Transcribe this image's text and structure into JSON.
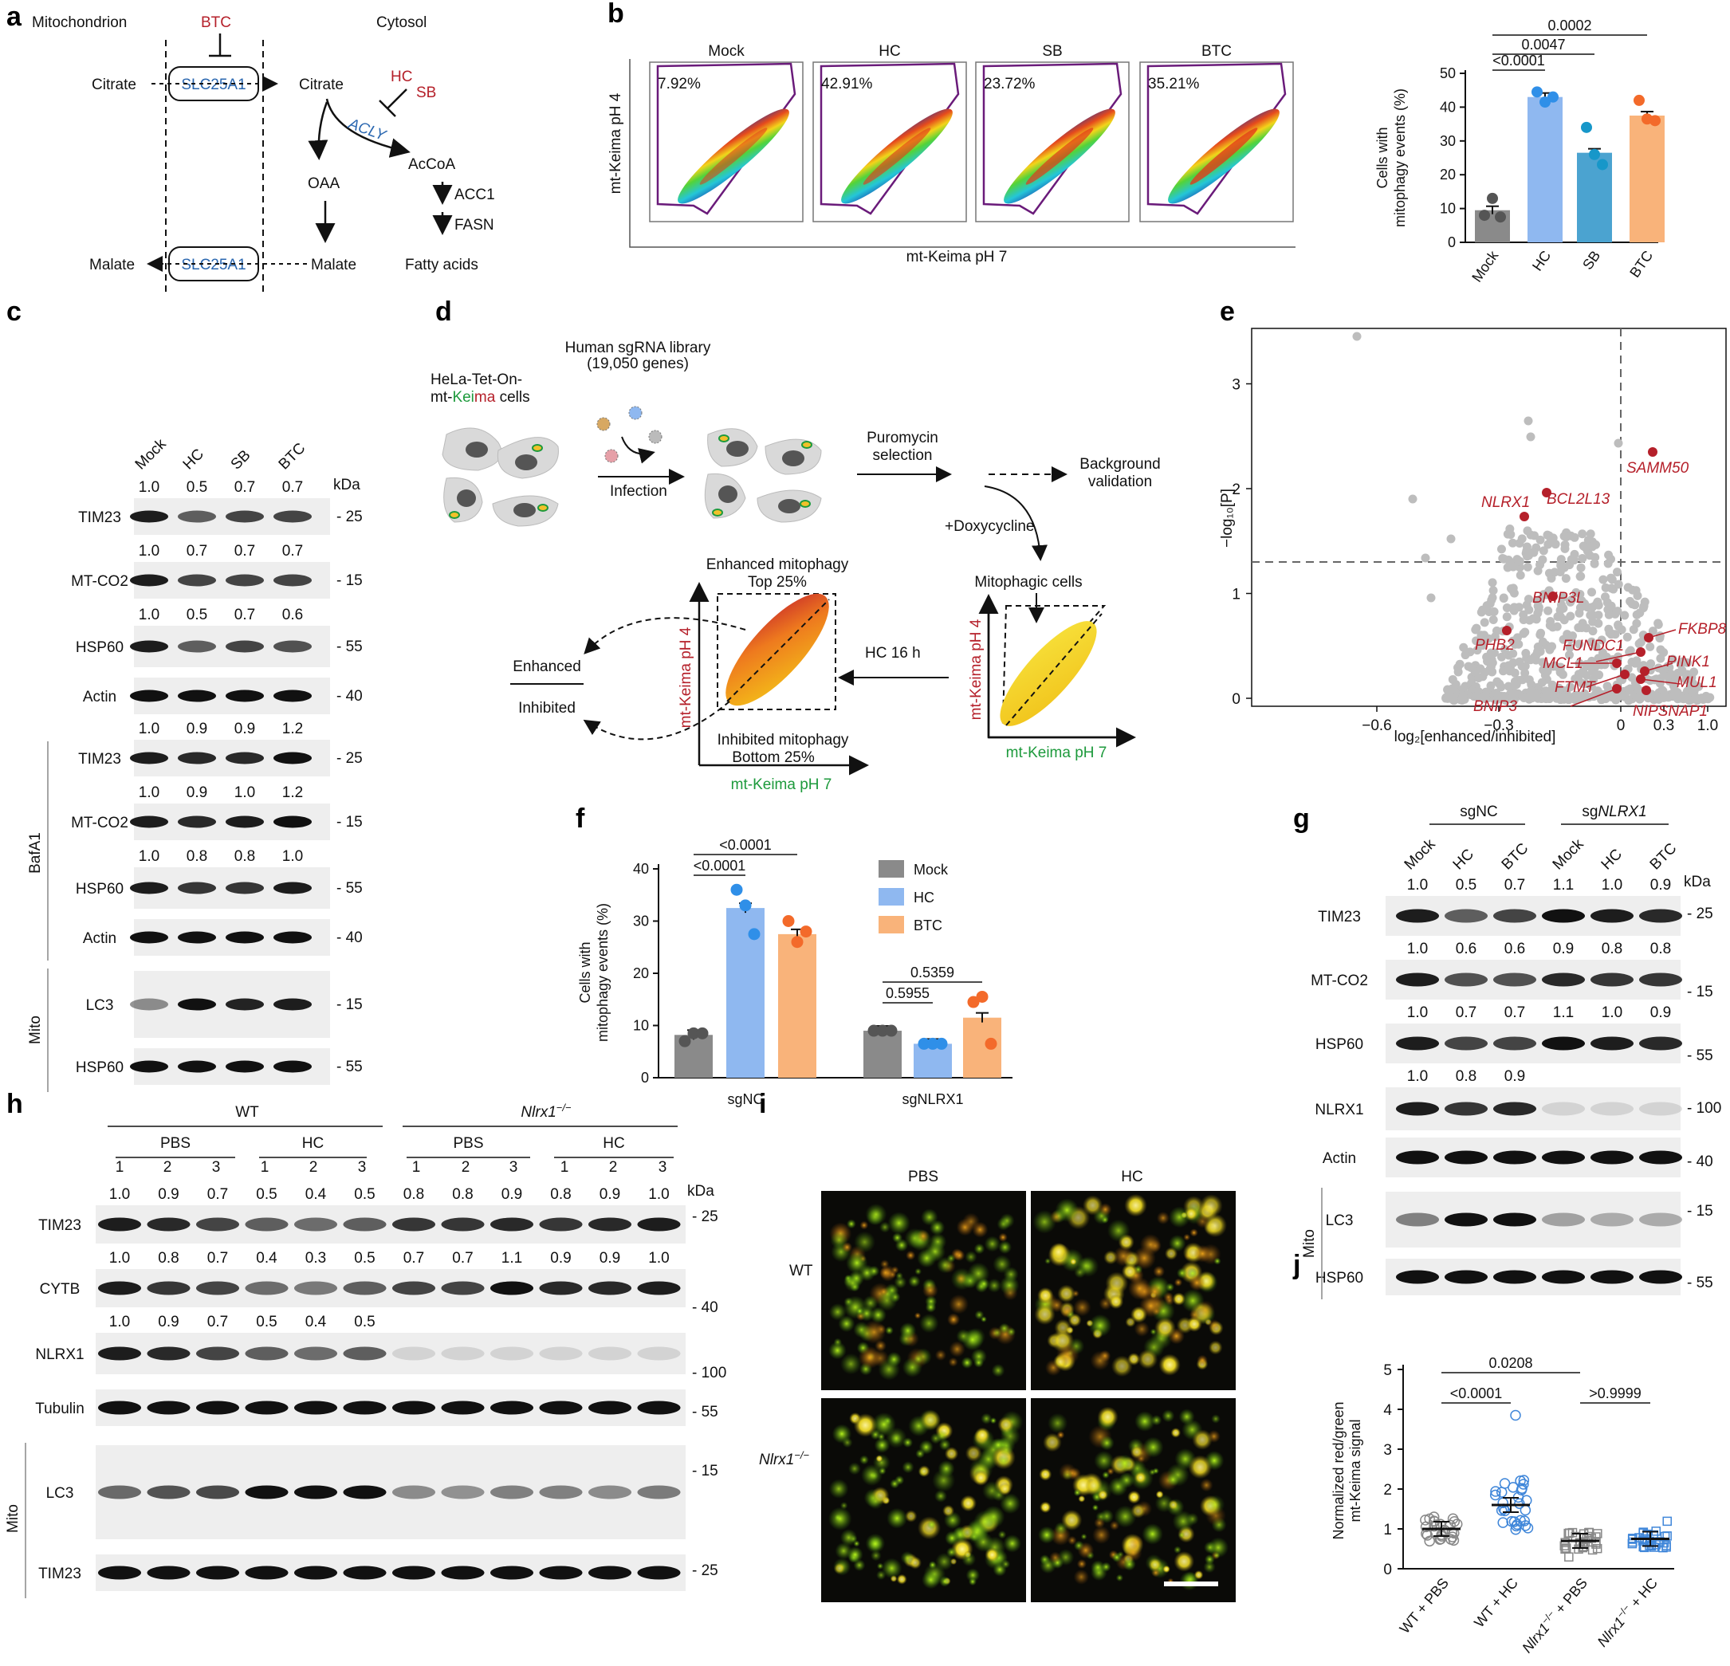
{
  "panel_letters": [
    "a",
    "b",
    "c",
    "d",
    "e",
    "f",
    "g",
    "h",
    "i",
    "j"
  ],
  "panel_a": {
    "mitochondrion": "Mitochondrion",
    "cytosol": "Cytosol",
    "btc": "BTC",
    "citrate_left": "Citrate",
    "citrate_right": "Citrate",
    "transporter_top": "SLC25A1",
    "transporter_bottom": "SLC25A1",
    "hc": "HC",
    "sb": "SB",
    "acly": "ACLY",
    "oaa": "OAA",
    "accoa": "AcCoA",
    "acc1": "ACC1",
    "fasn": "FASN",
    "malate_left": "Malate",
    "malate_right": "Malate",
    "fatty_acids": "Fatty acids"
  },
  "panel_b": {
    "flow_titles": [
      "Mock",
      "HC",
      "SB",
      "BTC"
    ],
    "flow_pcts": [
      "7.92%",
      "42.91%",
      "23.72%",
      "35.21%"
    ],
    "flow_ylabel": "mt-Keima pH 4",
    "flow_xlabel": "mt-Keima pH 7",
    "bar_ylabel_1": "Cells with",
    "bar_ylabel_2": "mitophagy events (%)",
    "bar_yticks": [
      "0",
      "10",
      "20",
      "30",
      "40",
      "50"
    ],
    "bar_cats": [
      "Mock",
      "HC",
      "SB",
      "BTC"
    ],
    "pvals": [
      "<0.0001",
      "0.0047",
      "0.0002"
    ]
  },
  "panel_c": {
    "lanes": [
      "Mock",
      "HC",
      "SB",
      "BTC"
    ],
    "kda": "kDa",
    "rows": [
      {
        "label": "TIM23",
        "ratios": [
          "1.0",
          "0.5",
          "0.7",
          "0.7"
        ],
        "marker": "25"
      },
      {
        "label": "MT-CO2",
        "ratios": [
          "1.0",
          "0.7",
          "0.7",
          "0.7"
        ],
        "marker": "15"
      },
      {
        "label": "HSP60",
        "ratios": [
          "1.0",
          "0.5",
          "0.7",
          "0.6"
        ],
        "marker": "55"
      },
      {
        "label": "Actin",
        "ratios": [],
        "marker": "40"
      },
      {
        "label": "TIM23",
        "ratios": [
          "1.0",
          "0.9",
          "0.9",
          "1.2"
        ],
        "marker": "25"
      },
      {
        "label": "MT-CO2",
        "ratios": [
          "1.0",
          "0.9",
          "1.0",
          "1.2"
        ],
        "marker": "15"
      },
      {
        "label": "HSP60",
        "ratios": [
          "1.0",
          "0.8",
          "0.8",
          "1.0"
        ],
        "marker": "55"
      },
      {
        "label": "Actin",
        "ratios": [],
        "marker": "40"
      },
      {
        "label": "LC3",
        "ratios": [],
        "marker": "15"
      },
      {
        "label": "HSP60",
        "ratios": [],
        "marker": "55"
      }
    ],
    "group_bafa1": "BafA1",
    "group_mito": "Mito"
  },
  "panel_d": {
    "library_1": "Human sgRNA library",
    "library_2": "(19,050 genes)",
    "cells_1": "HeLa-Tet-On-",
    "cells_2a": "mt-",
    "cells_2b": "Kei",
    "cells_2c": "ma",
    "cells_2d": " cells",
    "infection": "Infection",
    "puro_1": "Puromycin",
    "puro_2": "selection",
    "bg_1": "Background",
    "bg_2": "validation",
    "dox": "+Doxycycline",
    "mitophagic": "Mitophagic cells",
    "hc16": "HC 16 h",
    "enh_1": "Enhanced mitophagy",
    "enh_2": "Top 25%",
    "inh_1": "Inhibited mitophagy",
    "inh_2": "Bottom 25%",
    "enhanced": "Enhanced",
    "inhibited": "Inhibited",
    "ph4": "mt-Keima pH 4",
    "ph7": "mt-Keima pH 7"
  },
  "panel_e": {
    "ylabel": "−log₁₀[P]",
    "xlabel": "log₂[enhanced/inhibited]",
    "xticks": [
      "−0.6",
      "−0.3",
      "0",
      "0.3",
      "1.0"
    ],
    "yticks": [
      "0",
      "1",
      "2",
      "3"
    ],
    "genes": [
      "SAMM50",
      "NLRX1",
      "BCL2L13",
      "BNIP3L",
      "PHB2",
      "FUNDC1",
      "FKBP8",
      "MCL1",
      "PINK1",
      "FTMT",
      "MUL1",
      "BNIP3",
      "NIPSNAP1"
    ]
  },
  "panel_f": {
    "ylabel_1": "Cells with",
    "ylabel_2": "mitophagy events (%)",
    "yticks": [
      "0",
      "10",
      "20",
      "30",
      "40"
    ],
    "groups": [
      "sgNC",
      "sgNLRX1"
    ],
    "legend": [
      "Mock",
      "HC",
      "BTC"
    ],
    "pvals": [
      "<0.0001",
      "<0.0001",
      "0.5955",
      "0.5359"
    ]
  },
  "panel_g": {
    "group_sgnc": "sgNC",
    "group_sgnlrx1_a": "sg",
    "group_sgnlrx1_b": "NLRX1",
    "lanes": [
      "Mock",
      "HC",
      "BTC",
      "Mock",
      "HC",
      "BTC"
    ],
    "kda": "kDa",
    "rows": [
      {
        "label": "TIM23",
        "ratios": [
          "1.0",
          "0.5",
          "0.7",
          "1.1",
          "1.0",
          "0.9"
        ],
        "marker": "25"
      },
      {
        "label": "MT-CO2",
        "ratios": [
          "1.0",
          "0.6",
          "0.6",
          "0.9",
          "0.8",
          "0.8"
        ],
        "marker": "15"
      },
      {
        "label": "HSP60",
        "ratios": [
          "1.0",
          "0.7",
          "0.7",
          "1.1",
          "1.0",
          "0.9"
        ],
        "marker": "55"
      },
      {
        "label": "NLRX1",
        "ratios": [
          "1.0",
          "0.8",
          "0.9"
        ],
        "marker": "100"
      },
      {
        "label": "Actin",
        "ratios": [],
        "marker": "40"
      },
      {
        "label": "LC3",
        "ratios": [],
        "marker": "15"
      },
      {
        "label": "HSP60",
        "ratios": [],
        "marker": "55"
      }
    ],
    "group_mito": "Mito"
  },
  "panel_h": {
    "wt": "WT",
    "ko_a": "Nlrx1",
    "ko_b": "−/−",
    "subgroups": [
      "PBS",
      "HC",
      "PBS",
      "HC"
    ],
    "lanes": [
      "1",
      "2",
      "3",
      "1",
      "2",
      "3",
      "1",
      "2",
      "3",
      "1",
      "2",
      "3"
    ],
    "kda": "kDa",
    "rows": [
      {
        "label": "TIM23",
        "ratios": [
          "1.0",
          "0.9",
          "0.7",
          "0.5",
          "0.4",
          "0.5",
          "0.8",
          "0.8",
          "0.9",
          "0.8",
          "0.9",
          "1.0"
        ],
        "marker": "25"
      },
      {
        "label": "CYTB",
        "ratios": [
          "1.0",
          "0.8",
          "0.7",
          "0.4",
          "0.3",
          "0.5",
          "0.7",
          "0.7",
          "1.1",
          "0.9",
          "0.9",
          "1.0"
        ],
        "marker": "40"
      },
      {
        "label": "NLRX1",
        "ratios": [
          "1.0",
          "0.9",
          "0.7",
          "0.5",
          "0.4",
          "0.5"
        ],
        "marker": "100"
      },
      {
        "label": "Tubulin",
        "ratios": [],
        "marker": "55"
      },
      {
        "label": "LC3",
        "ratios": [],
        "marker": "15"
      },
      {
        "label": "TIM23",
        "ratios": [],
        "marker": "25"
      }
    ],
    "group_mito": "Mito"
  },
  "panel_i": {
    "cols": [
      "PBS",
      "HC"
    ],
    "row_wt": "WT",
    "row_ko_a": "Nlrx1",
    "row_ko_b": "−/−"
  },
  "panel_j": {
    "ylabel_1": "Normalized red/green",
    "ylabel_2": "mt-Keima signal",
    "yticks": [
      "0",
      "1",
      "2",
      "3",
      "4",
      "5"
    ],
    "pvals": [
      "0.0208",
      "<0.0001",
      ">0.9999"
    ],
    "cats": [
      "WT + PBS",
      "WT + HC"
    ],
    "cat_ko_a": "Nlrx1",
    "cat_ko_b": "−/−",
    "cat_ko_c1": " + PBS",
    "cat_ko_c2": " + HC"
  },
  "chart_data": [
    {
      "type": "bar",
      "categories": [
        "Mock",
        "HC",
        "SB",
        "BTC"
      ],
      "values": [
        9.5,
        43,
        26.5,
        37.5
      ],
      "points": [
        [
          8,
          13,
          7.5
        ],
        [
          44.5,
          41.5,
          43
        ],
        [
          34,
          26,
          23
        ],
        [
          42,
          36.5,
          36
        ]
      ],
      "ylabel": "Cells with mitophagy events (%)",
      "ylim": [
        0,
        50
      ],
      "colors": [
        "#8a8a8a",
        "#8fb8f0",
        "#4ba3d0",
        "#f9b37a"
      ],
      "point_colors": [
        "#555555",
        "#2f8fe8",
        "#1797c9",
        "#f36a2a"
      ]
    },
    {
      "type": "scatter",
      "xlabel": "log₂[enhanced/inhibited]",
      "ylabel": "−log₁₀[P]",
      "highlighted": [
        {
          "gene": "SAMM50",
          "x": 0.04,
          "y": 2.38
        },
        {
          "gene": "NLRX1",
          "x": -0.28,
          "y": 1.77
        },
        {
          "gene": "BCL2L13",
          "x": -0.2,
          "y": 2.02
        },
        {
          "gene": "BNIP3L",
          "x": -0.16,
          "y": 1.0
        },
        {
          "gene": "PHB2",
          "x": -0.35,
          "y": 0.65
        },
        {
          "gene": "FUNDC1",
          "x": 0.04,
          "y": 0.44
        },
        {
          "gene": "FKBP8",
          "x": 0.12,
          "y": 0.5
        },
        {
          "gene": "MCL1",
          "x": 0,
          "y": 0.34
        },
        {
          "gene": "PINK1",
          "x": 0.22,
          "y": 0.3
        },
        {
          "gene": "FTMT",
          "x": 0.04,
          "y": 0.12
        },
        {
          "gene": "MUL1",
          "x": 0.2,
          "y": 0.22
        },
        {
          "gene": "BNIP3",
          "x": -0.01,
          "y": 0.05
        },
        {
          "gene": "NIPSNAP1",
          "x": 0.26,
          "y": 0.02
        }
      ]
    },
    {
      "type": "bar",
      "groups": [
        "sgNC",
        "sgNLRX1"
      ],
      "series": [
        {
          "name": "Mock",
          "values": [
            8.2,
            9
          ],
          "points": [
            [
              7,
              8.5,
              8.5
            ],
            [
              9,
              9,
              9
            ]
          ]
        },
        {
          "name": "HC",
          "values": [
            32.5,
            6.5
          ],
          "points": [
            [
              36,
              33,
              27.5
            ],
            [
              6.5,
              6.5,
              6.5
            ]
          ]
        },
        {
          "name": "BTC",
          "values": [
            27.5,
            11.5
          ],
          "points": [
            [
              30,
              26,
              28
            ],
            [
              14.5,
              15.5,
              6.5
            ]
          ]
        }
      ],
      "ylabel": "Cells with mitophagy events (%)",
      "ylim": [
        0,
        40
      ]
    },
    {
      "type": "scatter",
      "categories": [
        "WT + PBS",
        "WT + HC",
        "Nlrx1−/− + PBS",
        "Nlrx1−/− + HC"
      ],
      "means": [
        1.0,
        1.6,
        0.7,
        0.75
      ],
      "ylim": [
        0,
        5
      ],
      "ylabel": "Normalized red/green mt-Keima signal"
    }
  ]
}
